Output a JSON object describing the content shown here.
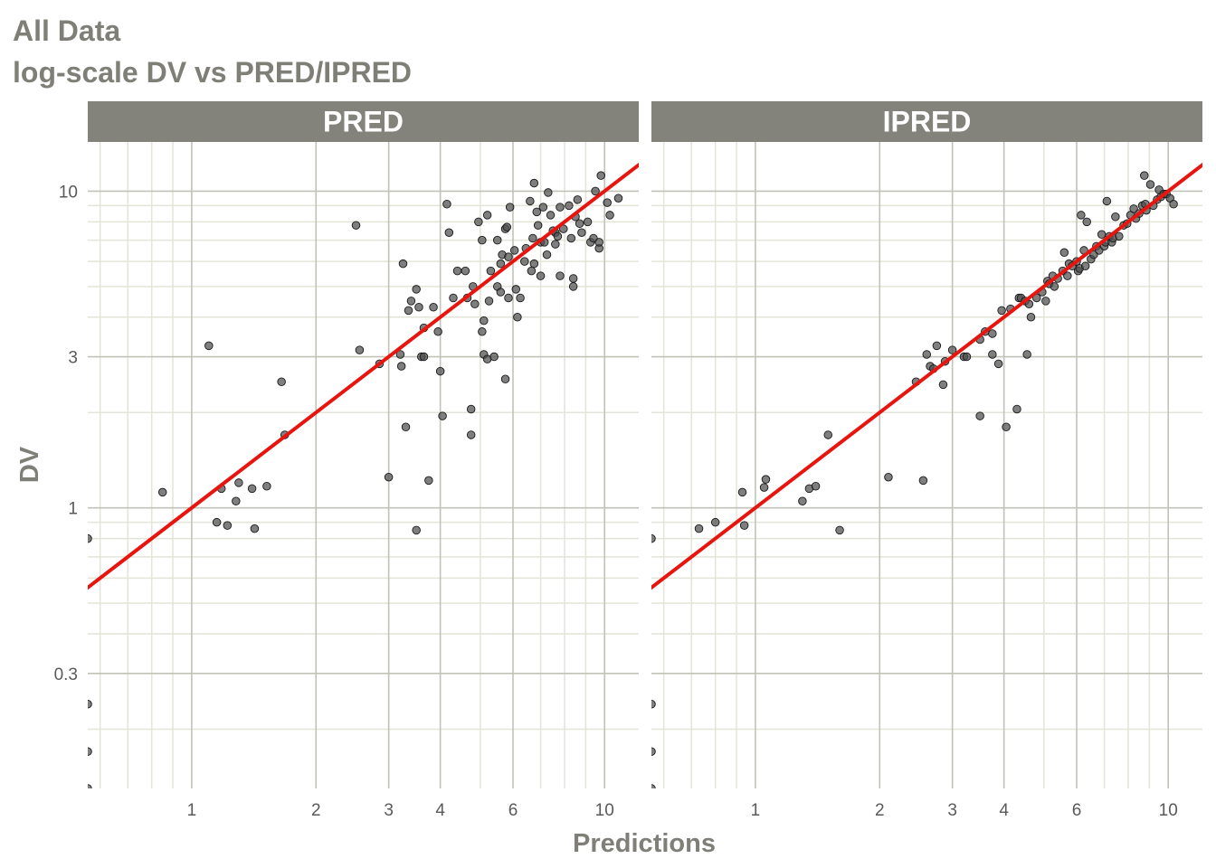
{
  "title": "All Data",
  "subtitle": "log-scale DV vs PRED/IPRED",
  "colors": {
    "strip_bg": "#83837c",
    "strip_text": "#ffffff",
    "grid_major": "#c2c2b8",
    "grid_minor": "#e4e4d8",
    "points": "#4d4d4d",
    "line": "#e8150f",
    "text": "#7f7f78"
  },
  "chart_data": {
    "type": "scatter",
    "xlabel": "Predictions",
    "ylabel": "DV",
    "x_scale": "log",
    "y_scale": "log",
    "xlim": [
      0.56,
      12.1
    ],
    "ylim": [
      0.13,
      14.3
    ],
    "x_ticks": [
      1,
      2,
      3,
      4,
      6,
      10
    ],
    "x_tick_labels": [
      "1",
      "2",
      "3",
      "4",
      "6",
      "10"
    ],
    "y_ticks": [
      0.3,
      1,
      3,
      10
    ],
    "y_tick_labels": [
      "0.3",
      "1",
      "3",
      "10"
    ],
    "reference_line": "identity (y = x)",
    "grid": true,
    "panels": [
      {
        "name": "PRED",
        "points": [
          [
            0.56,
            0.8
          ],
          [
            0.56,
            0.24
          ],
          [
            0.56,
            0.17
          ],
          [
            0.56,
            0.13
          ],
          [
            0.85,
            1.12
          ],
          [
            1.1,
            3.25
          ],
          [
            1.18,
            1.15
          ],
          [
            1.15,
            0.9
          ],
          [
            1.22,
            0.88
          ],
          [
            1.28,
            1.05
          ],
          [
            1.3,
            1.2
          ],
          [
            1.4,
            1.15
          ],
          [
            1.42,
            0.86
          ],
          [
            1.52,
            1.17
          ],
          [
            1.65,
            2.5
          ],
          [
            1.68,
            1.7
          ],
          [
            2.5,
            7.8
          ],
          [
            2.55,
            3.15
          ],
          [
            2.85,
            2.85
          ],
          [
            3.0,
            1.25
          ],
          [
            3.2,
            3.05
          ],
          [
            3.22,
            2.8
          ],
          [
            3.25,
            5.9
          ],
          [
            3.3,
            1.8
          ],
          [
            3.35,
            4.2
          ],
          [
            3.4,
            4.5
          ],
          [
            3.5,
            4.9
          ],
          [
            3.5,
            0.85
          ],
          [
            3.55,
            4.3
          ],
          [
            3.6,
            3.0
          ],
          [
            3.65,
            3.0
          ],
          [
            3.65,
            3.7
          ],
          [
            3.75,
            1.22
          ],
          [
            3.85,
            4.3
          ],
          [
            3.95,
            3.6
          ],
          [
            4.0,
            2.7
          ],
          [
            4.05,
            1.95
          ],
          [
            4.15,
            9.1
          ],
          [
            4.2,
            7.4
          ],
          [
            4.3,
            4.6
          ],
          [
            4.4,
            5.6
          ],
          [
            4.6,
            5.6
          ],
          [
            4.65,
            4.6
          ],
          [
            4.75,
            1.7
          ],
          [
            4.75,
            2.05
          ],
          [
            4.8,
            5.0
          ],
          [
            4.85,
            4.4
          ],
          [
            4.95,
            8.0
          ],
          [
            5.05,
            7.0
          ],
          [
            5.05,
            3.6
          ],
          [
            5.1,
            3.9
          ],
          [
            5.1,
            3.05
          ],
          [
            5.2,
            8.4
          ],
          [
            5.2,
            2.95
          ],
          [
            5.25,
            4.5
          ],
          [
            5.3,
            5.6
          ],
          [
            5.4,
            3.0
          ],
          [
            5.5,
            7.0
          ],
          [
            5.5,
            5.0
          ],
          [
            5.6,
            5.9
          ],
          [
            5.6,
            4.8
          ],
          [
            5.65,
            6.3
          ],
          [
            5.75,
            2.55
          ],
          [
            5.75,
            7.6
          ],
          [
            5.8,
            7.7
          ],
          [
            5.85,
            4.6
          ],
          [
            5.85,
            6.2
          ],
          [
            5.9,
            8.9
          ],
          [
            6.05,
            6.5
          ],
          [
            6.1,
            4.9
          ],
          [
            6.15,
            4.0
          ],
          [
            6.25,
            4.6
          ],
          [
            6.4,
            6.0
          ],
          [
            6.45,
            6.6
          ],
          [
            6.6,
            9.3
          ],
          [
            6.65,
            5.6
          ],
          [
            6.7,
            7.1
          ],
          [
            6.75,
            10.6
          ],
          [
            6.75,
            5.9
          ],
          [
            6.85,
            8.6
          ],
          [
            6.9,
            7.8
          ],
          [
            7.0,
            5.4
          ],
          [
            7.0,
            6.9
          ],
          [
            7.1,
            8.9
          ],
          [
            7.15,
            6.9
          ],
          [
            7.25,
            6.3
          ],
          [
            7.3,
            9.9
          ],
          [
            7.4,
            8.4
          ],
          [
            7.5,
            7.5
          ],
          [
            7.6,
            7.4
          ],
          [
            7.6,
            6.8
          ],
          [
            7.7,
            7.2
          ],
          [
            7.8,
            8.9
          ],
          [
            7.8,
            5.4
          ],
          [
            7.95,
            7.6
          ],
          [
            8.2,
            9.0
          ],
          [
            8.3,
            7.1
          ],
          [
            8.4,
            5.3
          ],
          [
            8.4,
            5.0
          ],
          [
            8.5,
            8.3
          ],
          [
            8.6,
            9.4
          ],
          [
            8.7,
            7.9
          ],
          [
            8.8,
            7.4
          ],
          [
            9.1,
            8.0
          ],
          [
            9.25,
            6.9
          ],
          [
            9.4,
            7.1
          ],
          [
            9.5,
            10.0
          ],
          [
            9.7,
            6.6
          ],
          [
            9.7,
            6.9
          ],
          [
            9.8,
            11.2
          ],
          [
            10.15,
            9.2
          ],
          [
            10.3,
            8.4
          ],
          [
            10.8,
            9.5
          ]
        ]
      },
      {
        "name": "IPRED",
        "points": [
          [
            0.56,
            0.8
          ],
          [
            0.56,
            0.24
          ],
          [
            0.56,
            0.17
          ],
          [
            0.56,
            0.13
          ],
          [
            0.73,
            0.86
          ],
          [
            0.8,
            0.9
          ],
          [
            0.93,
            1.12
          ],
          [
            0.94,
            0.88
          ],
          [
            1.05,
            1.16
          ],
          [
            1.06,
            1.23
          ],
          [
            1.3,
            1.05
          ],
          [
            1.35,
            1.15
          ],
          [
            1.4,
            1.17
          ],
          [
            1.5,
            1.7
          ],
          [
            1.6,
            0.85
          ],
          [
            2.1,
            1.25
          ],
          [
            2.45,
            2.5
          ],
          [
            2.55,
            1.22
          ],
          [
            2.6,
            3.05
          ],
          [
            2.65,
            2.8
          ],
          [
            2.7,
            2.75
          ],
          [
            2.75,
            3.25
          ],
          [
            2.85,
            2.45
          ],
          [
            2.88,
            2.9
          ],
          [
            3.0,
            3.15
          ],
          [
            3.2,
            3.0
          ],
          [
            3.25,
            3.0
          ],
          [
            3.5,
            1.95
          ],
          [
            3.5,
            3.4
          ],
          [
            3.6,
            3.6
          ],
          [
            3.75,
            3.55
          ],
          [
            3.75,
            3.05
          ],
          [
            3.88,
            2.85
          ],
          [
            3.95,
            4.2
          ],
          [
            4.05,
            1.8
          ],
          [
            4.15,
            4.25
          ],
          [
            4.3,
            2.05
          ],
          [
            4.35,
            4.6
          ],
          [
            4.4,
            4.6
          ],
          [
            4.5,
            4.5
          ],
          [
            4.55,
            3.05
          ],
          [
            4.6,
            4.4
          ],
          [
            4.65,
            4.0
          ],
          [
            4.8,
            4.6
          ],
          [
            4.95,
            4.8
          ],
          [
            5.05,
            4.5
          ],
          [
            5.1,
            5.2
          ],
          [
            5.15,
            5.1
          ],
          [
            5.25,
            5.4
          ],
          [
            5.3,
            5.0
          ],
          [
            5.4,
            5.3
          ],
          [
            5.55,
            5.6
          ],
          [
            5.6,
            6.4
          ],
          [
            5.7,
            5.4
          ],
          [
            5.75,
            5.9
          ],
          [
            5.85,
            5.8
          ],
          [
            6.0,
            6.0
          ],
          [
            6.05,
            5.6
          ],
          [
            6.1,
            5.7
          ],
          [
            6.15,
            8.4
          ],
          [
            6.25,
            6.5
          ],
          [
            6.3,
            5.8
          ],
          [
            6.35,
            8.0
          ],
          [
            6.5,
            6.1
          ],
          [
            6.6,
            6.3
          ],
          [
            6.7,
            6.7
          ],
          [
            6.8,
            6.5
          ],
          [
            6.9,
            7.3
          ],
          [
            7.0,
            6.7
          ],
          [
            7.05,
            6.9
          ],
          [
            7.1,
            9.3
          ],
          [
            7.2,
            7.2
          ],
          [
            7.3,
            6.9
          ],
          [
            7.35,
            7.1
          ],
          [
            7.45,
            8.3
          ],
          [
            7.6,
            7.2
          ],
          [
            7.8,
            7.8
          ],
          [
            7.95,
            7.9
          ],
          [
            8.1,
            8.4
          ],
          [
            8.25,
            8.8
          ],
          [
            8.35,
            8.2
          ],
          [
            8.5,
            8.5
          ],
          [
            8.65,
            9.0
          ],
          [
            8.75,
            11.2
          ],
          [
            8.8,
            9.1
          ],
          [
            8.85,
            8.7
          ],
          [
            9.05,
            10.5
          ],
          [
            9.2,
            9.0
          ],
          [
            9.4,
            9.4
          ],
          [
            9.5,
            10.1
          ],
          [
            9.6,
            9.6
          ],
          [
            9.75,
            9.8
          ],
          [
            9.9,
            9.8
          ],
          [
            10.1,
            9.5
          ],
          [
            10.3,
            9.1
          ]
        ]
      }
    ]
  }
}
